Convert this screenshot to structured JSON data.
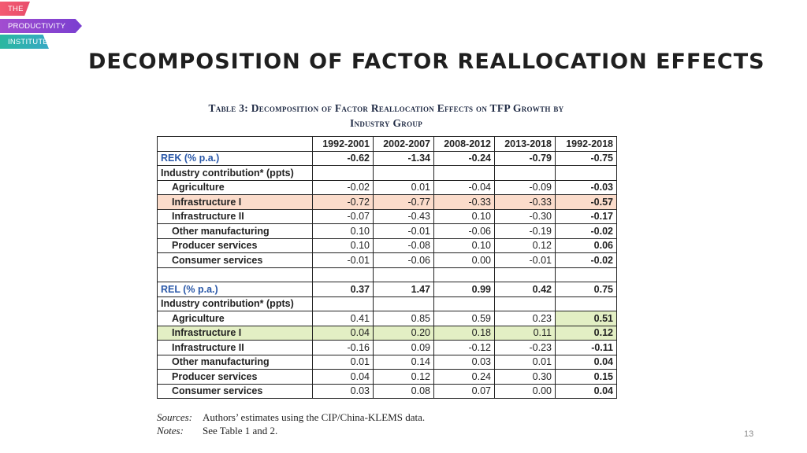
{
  "logo": {
    "line1": "THE",
    "line2": "PRODUCTIVITY",
    "line3": "INSTITUTE"
  },
  "title": "DECOMPOSITION OF FACTOR REALLOCATION EFFECTS",
  "caption": {
    "line1": "Table 3: Decomposition of Factor Reallocation Effects on TFP Growth by",
    "line2": "Industry Group"
  },
  "columns": [
    "1992-2001",
    "2002-2007",
    "2008-2012",
    "2013-2018",
    "1992-2018"
  ],
  "rek": {
    "label": "REK (% p.a.)",
    "values": [
      "-0.62",
      "-1.34",
      "-0.24",
      "-0.79",
      "-0.75"
    ],
    "contrib_label": "Industry contribution* (ppts)",
    "rows": [
      {
        "name": "Agriculture",
        "values": [
          "-0.02",
          "0.01",
          "-0.04",
          "-0.09",
          "-0.03"
        ]
      },
      {
        "name": "Infrastructure I",
        "values": [
          "-0.72",
          "-0.77",
          "-0.33",
          "-0.33",
          "-0.57"
        ]
      },
      {
        "name": "Infrastructure II",
        "values": [
          "-0.07",
          "-0.43",
          "0.10",
          "-0.30",
          "-0.17"
        ]
      },
      {
        "name": "Other manufacturing",
        "values": [
          "0.10",
          "-0.01",
          "-0.06",
          "-0.19",
          "-0.02"
        ]
      },
      {
        "name": "Producer services",
        "values": [
          "0.10",
          "-0.08",
          "0.10",
          "0.12",
          "0.06"
        ]
      },
      {
        "name": "Consumer services",
        "values": [
          "-0.01",
          "-0.06",
          "0.00",
          "-0.01",
          "-0.02"
        ]
      }
    ]
  },
  "rel": {
    "label": "REL (% p.a.)",
    "values": [
      "0.37",
      "1.47",
      "0.99",
      "0.42",
      "0.75"
    ],
    "contrib_label": "Industry contribution* (ppts)",
    "rows": [
      {
        "name": "Agriculture",
        "values": [
          "0.41",
          "0.85",
          "0.59",
          "0.23",
          "0.51"
        ]
      },
      {
        "name": "Infrastructure I",
        "values": [
          "0.04",
          "0.20",
          "0.18",
          "0.11",
          "0.12"
        ]
      },
      {
        "name": "Infrastructure II",
        "values": [
          "-0.16",
          "0.09",
          "-0.12",
          "-0.23",
          "-0.11"
        ]
      },
      {
        "name": "Other manufacturing",
        "values": [
          "0.01",
          "0.14",
          "0.03",
          "0.01",
          "0.04"
        ]
      },
      {
        "name": "Producer services",
        "values": [
          "0.04",
          "0.12",
          "0.24",
          "0.30",
          "0.15"
        ]
      },
      {
        "name": "Consumer services",
        "values": [
          "0.03",
          "0.08",
          "0.07",
          "0.00",
          "0.04"
        ]
      }
    ]
  },
  "notes": {
    "sources_key": "Sources:",
    "sources_text": "Authors’ estimates using the CIP/China-KLEMS data.",
    "notes_key": "Notes:",
    "notes_text": "See Table 1 and 2."
  },
  "page_number": "13",
  "colors": {
    "header_blue": "#2a58a8",
    "highlight_orange": "#fbdccb",
    "highlight_green": "#e3efc4"
  }
}
